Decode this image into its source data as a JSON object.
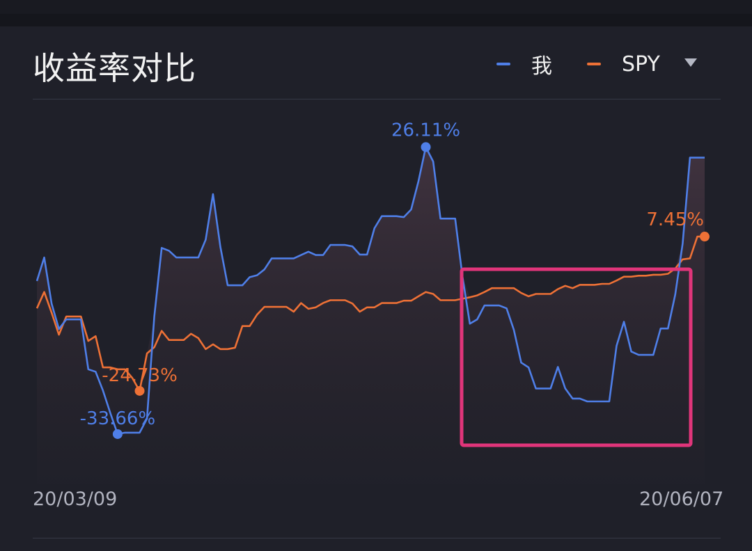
{
  "header": {
    "title": "收益率对比",
    "legend": [
      {
        "label": "我",
        "color": "#4f7fe8"
      },
      {
        "label": "SPY",
        "color": "#ee7136"
      }
    ],
    "dropdown_icon": "triangle-down-icon"
  },
  "chart_data": {
    "type": "line",
    "title": "收益率对比",
    "xlabel": "",
    "ylabel": "",
    "x_start_label": "20/03/09",
    "x_end_label": "20/06/07",
    "ylim": [
      -44,
      35
    ],
    "grid": false,
    "legend_position": "top-right",
    "series": [
      {
        "name": "我",
        "color": "#4f7fe8",
        "values": [
          -1.8,
          3.1,
          -6.5,
          -11.8,
          -9.8,
          -9.8,
          -9.8,
          -20.2,
          -20.7,
          -24.6,
          -29.3,
          -33.7,
          -33.4,
          -33.4,
          -33.4,
          -30.5,
          -9.2,
          5.1,
          4.5,
          3.1,
          3.1,
          3.1,
          3.1,
          6.8,
          16.3,
          5.3,
          -2.7,
          -2.7,
          -2.7,
          -1.0,
          -0.6,
          0.6,
          2.9,
          2.9,
          2.9,
          2.9,
          3.6,
          4.3,
          3.6,
          3.6,
          5.7,
          5.7,
          5.7,
          5.4,
          3.7,
          3.7,
          9.2,
          11.7,
          11.7,
          11.7,
          11.5,
          13.1,
          19.0,
          26.1,
          23.1,
          11.2,
          11.2,
          11.2,
          -0.9,
          -10.7,
          -9.8,
          -6.9,
          -6.9,
          -6.9,
          -7.5,
          -12.0,
          -18.8,
          -19.8,
          -24.2,
          -24.2,
          -24.2,
          -19.7,
          -24.2,
          -26.3,
          -26.3,
          -26.9,
          -26.9,
          -26.9,
          -26.9,
          -15.3,
          -10.3,
          -16.5,
          -17.2,
          -17.2,
          -17.2,
          -11.7,
          -11.7,
          -4.6,
          6.0,
          23.9,
          23.9,
          23.9
        ],
        "max": {
          "value": "26.11%"
        },
        "min": {
          "value": "-33.66%"
        }
      },
      {
        "name": "SPY",
        "color": "#ee7136",
        "values": [
          -7.5,
          -4.1,
          -8.4,
          -13.0,
          -9.2,
          -9.2,
          -9.2,
          -14.3,
          -13.3,
          -19.8,
          -19.8,
          -20.2,
          -20.2,
          -22.0,
          -24.7,
          -16.9,
          -15.6,
          -12.2,
          -14.1,
          -14.1,
          -14.1,
          -12.8,
          -13.7,
          -16.0,
          -15.0,
          -16.0,
          -16.0,
          -15.7,
          -11.2,
          -11.2,
          -8.8,
          -7.2,
          -7.2,
          -7.2,
          -7.2,
          -8.2,
          -6.4,
          -7.6,
          -7.3,
          -6.4,
          -5.8,
          -5.8,
          -5.8,
          -6.5,
          -8.2,
          -7.3,
          -7.3,
          -6.4,
          -6.4,
          -6.4,
          -5.9,
          -5.9,
          -5.0,
          -4.1,
          -4.5,
          -5.8,
          -5.8,
          -5.8,
          -5.5,
          -5.2,
          -4.8,
          -4.1,
          -3.3,
          -3.3,
          -3.3,
          -3.3,
          -4.3,
          -5.0,
          -4.5,
          -4.5,
          -4.5,
          -3.5,
          -2.8,
          -3.3,
          -2.6,
          -2.6,
          -2.6,
          -2.4,
          -2.4,
          -1.7,
          -0.9,
          -0.9,
          -0.7,
          -0.7,
          -0.5,
          -0.5,
          -0.3,
          0.8,
          2.7,
          2.9,
          7.45,
          7.45
        ],
        "max": {
          "value": "7.45%"
        },
        "min": {
          "value": "-24.73%"
        }
      }
    ],
    "annotation": {
      "type": "highlight-box",
      "color": "#e0357a"
    }
  }
}
